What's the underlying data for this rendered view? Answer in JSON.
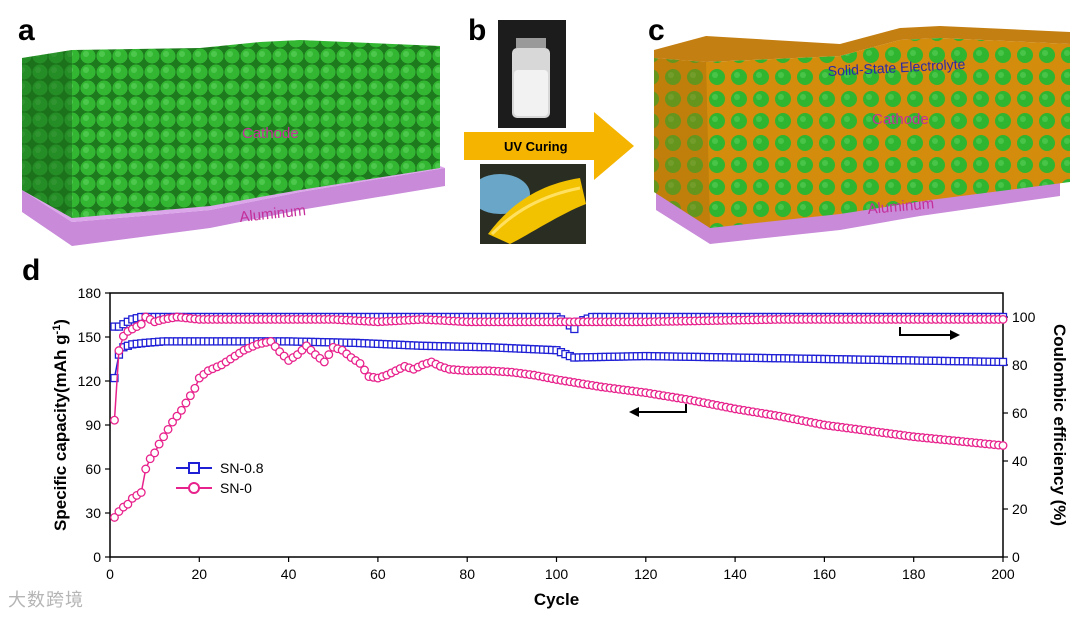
{
  "panels": {
    "a": {
      "label": "a",
      "cathode": "Cathode",
      "substrate": "Aluminum"
    },
    "b": {
      "label": "b",
      "arrow_text": "UV Curing"
    },
    "c": {
      "label": "c",
      "electrolyte": "Solid-State Electrolyte",
      "cathode": "Cathode",
      "substrate": "Aluminum"
    },
    "d": {
      "label": "d"
    }
  },
  "colors": {
    "sn08": "#1f1fd6",
    "sn0": "#e8228c",
    "cathode": "#2fb52f",
    "electrolyte": "#d9920f",
    "aluminum": "#c88ad9",
    "arrow": "#f4b400"
  },
  "watermark": "大数跨境",
  "chart_data": {
    "type": "line",
    "xlabel": "Cycle",
    "ylabel_left": "Specific capacity(mAh g",
    "ylabel_left_sup": "-1",
    "ylabel_left_end": ")",
    "ylabel_right": "Coulombic efficiency (%)",
    "xlim": [
      0,
      200
    ],
    "ylim_left": [
      0,
      180
    ],
    "ylim_right": [
      0,
      110
    ],
    "x_ticks": [
      "0",
      "20",
      "40",
      "60",
      "80",
      "100",
      "120",
      "140",
      "160",
      "180",
      "200"
    ],
    "y_left_ticks": [
      "0",
      "30",
      "60",
      "90",
      "120",
      "150",
      "180"
    ],
    "y_right_ticks": [
      "0",
      "20",
      "40",
      "60",
      "80",
      "100"
    ],
    "legend": [
      "SN-0.8",
      "SN-0"
    ],
    "series": [
      {
        "name": "SN-0.8",
        "kind": "capacity",
        "axis": "left",
        "marker": "square",
        "points": [
          [
            1,
            122
          ],
          [
            2,
            138
          ],
          [
            3,
            143
          ],
          [
            5,
            145
          ],
          [
            8,
            146
          ],
          [
            12,
            147
          ],
          [
            20,
            147
          ],
          [
            40,
            147
          ],
          [
            55,
            146
          ],
          [
            70,
            144
          ],
          [
            85,
            143
          ],
          [
            100,
            141
          ],
          [
            103,
            137
          ],
          [
            104,
            136
          ],
          [
            120,
            137
          ],
          [
            140,
            136
          ],
          [
            160,
            135
          ],
          [
            180,
            134
          ],
          [
            200,
            133
          ]
        ]
      },
      {
        "name": "SN-0",
        "kind": "capacity",
        "axis": "left",
        "marker": "circle",
        "points": [
          [
            1,
            27
          ],
          [
            2,
            31
          ],
          [
            3,
            34
          ],
          [
            4,
            36
          ],
          [
            5,
            40
          ],
          [
            6,
            42
          ],
          [
            7,
            44
          ],
          [
            8,
            60
          ],
          [
            9,
            67
          ],
          [
            10,
            71
          ],
          [
            11,
            77
          ],
          [
            12,
            82
          ],
          [
            13,
            87
          ],
          [
            14,
            92
          ],
          [
            15,
            96
          ],
          [
            16,
            100
          ],
          [
            17,
            105
          ],
          [
            18,
            110
          ],
          [
            19,
            115
          ],
          [
            20,
            122
          ],
          [
            22,
            127
          ],
          [
            25,
            131
          ],
          [
            28,
            137
          ],
          [
            30,
            141
          ],
          [
            33,
            145
          ],
          [
            36,
            147
          ],
          [
            38,
            140
          ],
          [
            40,
            134
          ],
          [
            42,
            138
          ],
          [
            44,
            144
          ],
          [
            46,
            138
          ],
          [
            48,
            133
          ],
          [
            50,
            143
          ],
          [
            52,
            141
          ],
          [
            54,
            136
          ],
          [
            56,
            132
          ],
          [
            58,
            123
          ],
          [
            60,
            122
          ],
          [
            62,
            124
          ],
          [
            64,
            127
          ],
          [
            66,
            130
          ],
          [
            68,
            128
          ],
          [
            70,
            131
          ],
          [
            72,
            133
          ],
          [
            74,
            130
          ],
          [
            76,
            128
          ],
          [
            80,
            127
          ],
          [
            85,
            127
          ],
          [
            90,
            126
          ],
          [
            95,
            124
          ],
          [
            100,
            121
          ],
          [
            110,
            116
          ],
          [
            120,
            112
          ],
          [
            130,
            107
          ],
          [
            140,
            101
          ],
          [
            150,
            96
          ],
          [
            160,
            90
          ],
          [
            170,
            86
          ],
          [
            180,
            82
          ],
          [
            190,
            79
          ],
          [
            200,
            76
          ]
        ]
      },
      {
        "name": "SN-0.8",
        "kind": "efficiency",
        "axis": "right",
        "marker": "square",
        "points": [
          [
            1,
            96
          ],
          [
            2,
            96
          ],
          [
            3,
            97
          ],
          [
            5,
            99
          ],
          [
            7,
            100
          ],
          [
            10,
            100
          ],
          [
            20,
            100
          ],
          [
            50,
            100
          ],
          [
            80,
            100
          ],
          [
            100,
            100
          ],
          [
            102,
            98
          ],
          [
            104,
            95
          ],
          [
            105,
            98
          ],
          [
            108,
            100
          ],
          [
            130,
            100
          ],
          [
            160,
            100
          ],
          [
            200,
            100
          ]
        ]
      },
      {
        "name": "SN-0",
        "kind": "efficiency",
        "axis": "right",
        "marker": "circle",
        "points": [
          [
            1,
            57
          ],
          [
            2,
            86
          ],
          [
            3,
            92
          ],
          [
            4,
            94
          ],
          [
            5,
            95
          ],
          [
            6,
            96
          ],
          [
            7,
            97
          ],
          [
            8,
            100
          ],
          [
            10,
            98
          ],
          [
            12,
            99
          ],
          [
            15,
            100
          ],
          [
            20,
            99
          ],
          [
            30,
            99
          ],
          [
            40,
            99
          ],
          [
            50,
            99
          ],
          [
            60,
            98
          ],
          [
            70,
            99
          ],
          [
            80,
            98
          ],
          [
            90,
            98
          ],
          [
            100,
            98
          ],
          [
            120,
            98
          ],
          [
            150,
            99
          ],
          [
            180,
            99
          ],
          [
            200,
            99
          ]
        ]
      }
    ]
  }
}
